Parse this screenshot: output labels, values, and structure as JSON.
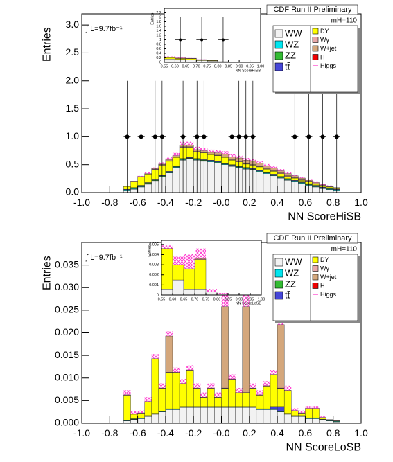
{
  "chart_data": [
    {
      "type": "histogram",
      "title": "CDF Run II Preliminary",
      "luminosity": "∫ L=9.7fb⁻¹",
      "mass": "mH=110",
      "x_label": "NN ScoreHiSB",
      "y_label": "Entries",
      "legend": "top-right",
      "xlim": [
        -1,
        1
      ],
      "ylim": [
        0,
        3.2
      ],
      "xticks": [
        {
          "value": -1,
          "label": "-1.0"
        },
        -0.8,
        -0.6,
        -0.4,
        -0.2,
        {
          "value": 0,
          "label": "-0.0"
        },
        0.2,
        0.4,
        0.6,
        0.8,
        {
          "value": 1,
          "label": "1.0"
        }
      ],
      "yticks": [
        {
          "value": 0,
          "label": "0.0"
        },
        0.5,
        {
          "value": 1,
          "label": "1.0"
        },
        1.5,
        {
          "value": 2,
          "label": "2.0"
        },
        2.5,
        {
          "value": 3,
          "label": "3.0"
        }
      ],
      "bins": [
        -0.7,
        -0.65,
        -0.6,
        -0.55,
        -0.5,
        -0.45,
        -0.4,
        -0.35,
        -0.3,
        -0.25,
        -0.2,
        -0.15,
        -0.1,
        -0.05,
        0,
        0.05,
        0.1,
        0.15,
        0.2,
        0.25,
        0.3,
        0.35,
        0.4,
        0.45,
        0.5,
        0.55,
        0.6,
        0.65,
        0.7,
        0.75,
        0.8,
        0.85
      ],
      "series": [
        {
          "name": "WW",
          "color": "#f2f2f2",
          "values": [
            0.03,
            0.06,
            0.1,
            0.15,
            0.2,
            0.28,
            0.35,
            0.45,
            0.58,
            0.6,
            0.58,
            0.56,
            0.55,
            0.53,
            0.5,
            0.47,
            0.45,
            0.42,
            0.4,
            0.37,
            0.34,
            0.3,
            0.26,
            0.22,
            0.19,
            0.16,
            0.13,
            0.1,
            0.07,
            0.05,
            0.03
          ]
        },
        {
          "name": "WZ",
          "color": "#00e5ee",
          "values": [
            0.01,
            0.01,
            0.01,
            0.01,
            0.01,
            0.01,
            0.01,
            0.01,
            0.01,
            0.01,
            0.01,
            0.01,
            0.01,
            0.01,
            0.01,
            0.01,
            0.01,
            0.01,
            0.01,
            0.01,
            0.01,
            0.01,
            0.01,
            0.01,
            0.01,
            0.01,
            0.01,
            0.01,
            0.01,
            0.01,
            0.01
          ]
        },
        {
          "name": "ZZ",
          "color": "#33bb33",
          "values": [
            0.01,
            0.01,
            0.01,
            0.01,
            0.01,
            0.01,
            0.01,
            0.01,
            0.01,
            0.01,
            0.01,
            0.01,
            0.01,
            0.01,
            0.01,
            0.01,
            0.01,
            0.01,
            0.01,
            0.01,
            0.01,
            0.01,
            0.01,
            0.01,
            0.01,
            0.01,
            0.01,
            0.01,
            0.01,
            0.01,
            0.01
          ]
        },
        {
          "name": "tt̄",
          "color": "#4646d8",
          "values": [
            0.01,
            0.01,
            0.01,
            0.01,
            0.01,
            0.01,
            0.01,
            0.01,
            0.01,
            0.01,
            0.01,
            0.01,
            0.01,
            0.01,
            0.01,
            0.01,
            0.01,
            0.01,
            0.01,
            0.01,
            0.01,
            0.01,
            0.01,
            0.01,
            0.01,
            0.01,
            0.01,
            0.01,
            0.01,
            0.01,
            0.01
          ]
        },
        {
          "name": "DY",
          "color": "#ffff00",
          "values": [
            0.05,
            0.1,
            0.15,
            0.15,
            0.18,
            0.18,
            0.18,
            0.15,
            0.2,
            0.18,
            0.12,
            0.12,
            0.1,
            0.1,
            0.1,
            0.08,
            0.07,
            0.06,
            0.06,
            0.06,
            0.05,
            0.05,
            0.05,
            0.04,
            0.04,
            0.03,
            0.03,
            0.02,
            0.02,
            0.02,
            0.01
          ]
        },
        {
          "name": "Wγ",
          "color": "#e8a8a8",
          "values": [
            0.01,
            0.01,
            0.01,
            0.01,
            0.01,
            0.01,
            0.01,
            0.01,
            0.01,
            0.01,
            0.01,
            0.01,
            0.01,
            0.01,
            0.01,
            0.01,
            0.01,
            0.01,
            0.01,
            0.01,
            0.01,
            0.01,
            0.01,
            0.01,
            0.01,
            0.01,
            0.01,
            0.01,
            0.01,
            0.01,
            0.01
          ]
        },
        {
          "name": "W+jet",
          "color": "#d4a77c",
          "values": [
            0,
            0,
            0,
            0,
            0.01,
            0.01,
            0.02,
            0.02,
            0.03,
            0.03,
            0.03,
            0.03,
            0.03,
            0.04,
            0.05,
            0.05,
            0.06,
            0.06,
            0.06,
            0.06,
            0.05,
            0.05,
            0.04,
            0.04,
            0.03,
            0.03,
            0.02,
            0.02,
            0.01,
            0.01,
            0.01
          ]
        },
        {
          "name": "H",
          "color": "#ee0000",
          "values": [
            0,
            0,
            0,
            0,
            0,
            0,
            0,
            0,
            0,
            0,
            0,
            0,
            0,
            0,
            0,
            0,
            0,
            0,
            0,
            0,
            0,
            0,
            0,
            0,
            0,
            0,
            0,
            0,
            0,
            0,
            0
          ]
        },
        {
          "name": "Higgs",
          "color": "#ff33cc",
          "style": "hatched",
          "values": [
            0,
            0.01,
            0.01,
            0.02,
            0.02,
            0.03,
            0.04,
            0.05,
            0.06,
            0.06,
            0.05,
            0.05,
            0.05,
            0.05,
            0.05,
            0.05,
            0.04,
            0.04,
            0.04,
            0.04,
            0.03,
            0.03,
            0.03,
            0.02,
            0.02,
            0.02,
            0.01,
            0.01,
            0.01,
            0.01,
            0
          ]
        }
      ],
      "data": {
        "x": [
          -0.675,
          -0.575,
          -0.475,
          -0.425,
          -0.275,
          -0.175,
          -0.125,
          0.075,
          0.125,
          0.175,
          0.225,
          0.525,
          0.625,
          0.725,
          0.825
        ],
        "values": [
          1,
          1,
          1,
          1,
          1,
          1,
          1,
          1,
          1,
          1,
          1,
          1,
          1,
          1,
          1
        ],
        "errors": [
          1,
          1,
          1,
          1,
          1,
          1,
          1,
          1,
          1,
          1,
          1,
          1,
          1,
          1,
          1
        ]
      }
    },
    {
      "type": "histogram",
      "x_label": "NN ScoreHiSB",
      "y_label": "Entries",
      "xlim": [
        0.55,
        1
      ],
      "ylim": [
        0,
        2.4
      ],
      "xticks": [
        0.55,
        {
          "value": 0.6,
          "label": "0.60"
        },
        0.65,
        {
          "value": 0.7,
          "label": "0.70"
        },
        0.75,
        {
          "value": 0.8,
          "label": "0.80"
        },
        0.85,
        {
          "value": 0.9,
          "label": "0.90"
        },
        0.95,
        {
          "value": 1,
          "label": "1.00"
        }
      ],
      "yticks": [
        0,
        0.2,
        0.4,
        0.6,
        0.8,
        1,
        1.2,
        1.4,
        1.6,
        1.8,
        2,
        2.2
      ],
      "bins": [
        0.55,
        0.6,
        0.65,
        0.7,
        0.75,
        0.8,
        0.85
      ],
      "series": [
        {
          "color": "#f2f2f2",
          "values": [
            0.15,
            0.13,
            0.12,
            0.08,
            0.06,
            0.02
          ]
        },
        {
          "color": "#ffff00",
          "values": [
            0.06,
            0.04,
            0.04,
            0.03,
            0.02,
            0.01
          ]
        },
        {
          "color": "#d4a77c",
          "values": [
            0.03,
            0.02,
            0.02,
            0.01,
            0.01,
            0
          ]
        },
        {
          "color": "#ff33cc",
          "style": "hatched",
          "values": [
            0.02,
            0.02,
            0.01,
            0.01,
            0.01,
            0
          ]
        }
      ],
      "data": {
        "x": [
          0.625,
          0.725,
          0.825
        ],
        "values": [
          1,
          1,
          1
        ],
        "errors": [
          1,
          1,
          1
        ]
      }
    },
    {
      "type": "histogram",
      "title": "CDF Run II Preliminary",
      "luminosity": "∫ L=9.7fb⁻¹",
      "mass": "mH=110",
      "x_label": "NN ScoreLoSB",
      "y_label": "Entries",
      "legend": "top-right",
      "xlim": [
        -1,
        1
      ],
      "ylim": [
        0,
        0.04
      ],
      "xticks": [
        {
          "value": -1,
          "label": "-1.0"
        },
        -0.8,
        -0.6,
        -0.4,
        -0.2,
        {
          "value": 0,
          "label": "-0.0"
        },
        0.2,
        0.4,
        0.6,
        0.8,
        {
          "value": 1,
          "label": "1.0"
        }
      ],
      "yticks": [
        {
          "value": 0,
          "label": "0.000"
        },
        0.005,
        {
          "value": 0.01,
          "label": "0.010"
        },
        0.015,
        {
          "value": 0.02,
          "label": "0.020"
        },
        0.025,
        {
          "value": 0.03,
          "label": "0.030"
        },
        0.035
      ],
      "bins": [
        -0.7,
        -0.65,
        -0.6,
        -0.55,
        -0.5,
        -0.45,
        -0.4,
        -0.35,
        -0.3,
        -0.25,
        -0.2,
        -0.15,
        -0.1,
        -0.05,
        0,
        0.05,
        0.1,
        0.15,
        0.2,
        0.25,
        0.3,
        0.35,
        0.4,
        0.45,
        0.5,
        0.55,
        0.6,
        0.65,
        0.7,
        0.75,
        0.8,
        0.85
      ],
      "series": [
        {
          "name": "WW",
          "color": "#f2f2f2",
          "values": [
            0.0005,
            0.0008,
            0.001,
            0.0015,
            0.002,
            0.0025,
            0.003,
            0.003,
            0.0035,
            0.0035,
            0.0035,
            0.0035,
            0.0035,
            0.0035,
            0.0035,
            0.0035,
            0.0035,
            0.0035,
            0.0035,
            0.003,
            0.003,
            0.003,
            0.0025,
            0.002,
            0.0015,
            0.0015,
            0.001,
            0.001,
            0.0007,
            0.0005,
            0.0003
          ]
        },
        {
          "name": "WZ",
          "color": "#00e5ee",
          "values": [
            0.0001,
            0.0001,
            0.0001,
            0.0001,
            0.0001,
            0.0001,
            0.0001,
            0.0001,
            0.0001,
            0.0001,
            0.0001,
            0.0001,
            0.0001,
            0.0001,
            0.0001,
            0.0001,
            0.0001,
            0.0001,
            0.0001,
            0.0001,
            0.0001,
            0.0001,
            0.0001,
            0.0001,
            0.0001,
            0.0001,
            0.0001,
            0.0001,
            0.0001,
            0.0001,
            0.0001
          ]
        },
        {
          "name": "ZZ",
          "color": "#33bb33",
          "values": [
            0.0001,
            0.0001,
            0.0001,
            0.0001,
            0.0001,
            0.0001,
            0.0001,
            0.0001,
            0.0001,
            0.0001,
            0.0001,
            0.0001,
            0.0001,
            0.0001,
            0.0001,
            0.0001,
            0.0001,
            0.0001,
            0.0001,
            0.0001,
            0.0001,
            0.0001,
            0.0001,
            0.0001,
            0.0001,
            0.0001,
            0.0001,
            0.0001,
            0.0001,
            0.0001,
            0.0001
          ]
        },
        {
          "name": "tt̄",
          "color": "#4646d8",
          "values": [
            0,
            0,
            0,
            0,
            0,
            0,
            0,
            0,
            0,
            0,
            0,
            0,
            0,
            0,
            0,
            0,
            0,
            0,
            0,
            0,
            0,
            0.0005,
            0.001,
            0,
            0,
            0,
            0,
            0,
            0,
            0,
            0
          ]
        },
        {
          "name": "DY",
          "color": "#ffff00",
          "values": [
            0.0055,
            0.001,
            0.001,
            0.003,
            0.012,
            0.005,
            0.008,
            0.008,
            0.005,
            0.008,
            0.004,
            0.002,
            0.004,
            0.002,
            0.004,
            0.006,
            0.003,
            0.003,
            0.004,
            0.003,
            0.005,
            0.007,
            0.004,
            0.005,
            0.001,
            0.0005,
            0.002,
            0.002,
            0.0003,
            0,
            0
          ]
        },
        {
          "name": "Wγ",
          "color": "#e8a8a8",
          "values": [
            0.0001,
            0.0001,
            0.0001,
            0.0001,
            0.0001,
            0.0001,
            0.0001,
            0.0001,
            0.0001,
            0.0001,
            0.0001,
            0.0001,
            0.0001,
            0.0001,
            0.0001,
            0.0001,
            0.0001,
            0.0001,
            0.0001,
            0.0001,
            0.0001,
            0.0001,
            0.0001,
            0.0001,
            0.0001,
            0.0001,
            0.0001,
            0.0001,
            0.0001,
            0.0001,
            0.0001
          ]
        },
        {
          "name": "W+jet",
          "color": "#d4a77c",
          "values": [
            0,
            0,
            0,
            0,
            0,
            0,
            0.008,
            0,
            0,
            0,
            0,
            0,
            0,
            0,
            0.018,
            0,
            0,
            0.019,
            0,
            0,
            0,
            0,
            0.014,
            0,
            0,
            0,
            0,
            0,
            0,
            0,
            0
          ]
        },
        {
          "name": "H",
          "color": "#ee0000",
          "values": [
            0,
            0,
            0,
            0,
            0,
            0,
            0,
            0,
            0,
            0,
            0,
            0,
            0,
            0,
            0,
            0,
            0,
            0,
            0,
            0,
            0,
            0,
            0,
            0,
            0,
            0,
            0,
            0,
            0,
            0,
            0
          ]
        },
        {
          "name": "Higgs",
          "color": "#ff33cc",
          "style": "hatched",
          "values": [
            0.001,
            0.0005,
            0.0005,
            0.001,
            0.001,
            0.001,
            0.001,
            0.001,
            0.001,
            0.001,
            0.001,
            0.001,
            0.001,
            0.001,
            0.004,
            0.001,
            0.001,
            0.004,
            0.001,
            0.001,
            0.001,
            0.001,
            0.006,
            0.001,
            0.0005,
            0.0005,
            0.0005,
            0.0005,
            0.0002,
            0,
            0
          ]
        }
      ]
    },
    {
      "type": "histogram",
      "x_label": "NN ScoreLoSB",
      "y_label": "Entries",
      "xlim": [
        0.55,
        1
      ],
      "ylim": [
        0,
        0.0054
      ],
      "xticks": [
        0.55,
        {
          "value": 0.6,
          "label": "0.60"
        },
        0.65,
        {
          "value": 0.7,
          "label": "0.70"
        },
        0.75,
        {
          "value": 0.8,
          "label": "0.80"
        },
        0.85,
        {
          "value": 0.9,
          "label": "0.90"
        },
        0.95,
        {
          "value": 1,
          "label": "1.00"
        }
      ],
      "yticks": [
        0,
        0.001,
        0.002,
        0.003,
        0.004,
        0.005
      ],
      "bins": [
        0.55,
        0.6,
        0.65,
        0.7,
        0.75,
        0.8,
        0.85
      ],
      "series": [
        {
          "color": "#f2f2f2",
          "values": [
            0.0006,
            0.0015,
            0.0006,
            0.0006,
            0.0003,
            0.0001
          ]
        },
        {
          "color": "#ffff00",
          "values": [
            0.004,
            0.0015,
            0.002,
            0.0029,
            0,
            0
          ]
        },
        {
          "color": "#d4a77c",
          "values": [
            0,
            0,
            0,
            0.0001,
            0,
            0
          ]
        },
        {
          "color": "#ff33cc",
          "style": "hatched",
          "values": [
            0.0003,
            0.0008,
            0.0015,
            0.001,
            0.0003,
            0.0001
          ]
        }
      ]
    }
  ]
}
